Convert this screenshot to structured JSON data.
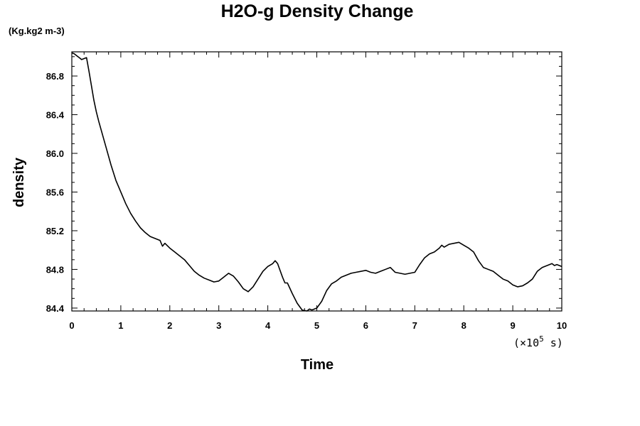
{
  "chart_data": {
    "type": "line",
    "title": "H2O-g Density Change",
    "y_unit_label": "(Kg.kg2 m-3)",
    "xlabel": "Time",
    "ylabel": "density",
    "x_scale_label": "(×10",
    "x_scale_exp": "5",
    "x_scale_unit": " s)",
    "xlim": [
      0,
      10
    ],
    "ylim": [
      84.37,
      87.05
    ],
    "x_ticks": [
      "0",
      "1",
      "2",
      "3",
      "4",
      "5",
      "6",
      "7",
      "8",
      "9",
      "10"
    ],
    "y_ticks": [
      "84.4",
      "84.8",
      "85.2",
      "85.6",
      "86.0",
      "86.4",
      "86.8"
    ],
    "y_tick_values": [
      84.4,
      84.8,
      85.2,
      85.6,
      86.0,
      86.4,
      86.8
    ],
    "grid": false,
    "line_color": "#000000",
    "series": [
      {
        "x": [
          0,
          0.05,
          0.1,
          0.15,
          0.2,
          0.25,
          0.3,
          0.35,
          0.4,
          0.45,
          0.5,
          0.55,
          0.6,
          0.7,
          0.8,
          0.9,
          1.0,
          1.1,
          1.2,
          1.3,
          1.4,
          1.5,
          1.6,
          1.7,
          1.8,
          1.85,
          1.9,
          2.0,
          2.1,
          2.2,
          2.3,
          2.4,
          2.5,
          2.6,
          2.7,
          2.8,
          2.9,
          3.0,
          3.1,
          3.15,
          3.2,
          3.3,
          3.4,
          3.5,
          3.6,
          3.7,
          3.8,
          3.9,
          4.0,
          4.1,
          4.15,
          4.2,
          4.3,
          4.35,
          4.4,
          4.5,
          4.6,
          4.7,
          4.8,
          4.85,
          4.9,
          5.0,
          5.1,
          5.2,
          5.3,
          5.4,
          5.5,
          5.6,
          5.7,
          5.8,
          5.9,
          6.0,
          6.1,
          6.2,
          6.3,
          6.4,
          6.5,
          6.6,
          6.7,
          6.8,
          6.9,
          7.0,
          7.1,
          7.2,
          7.3,
          7.4,
          7.5,
          7.55,
          7.6,
          7.7,
          7.8,
          7.9,
          8.0,
          8.1,
          8.2,
          8.3,
          8.4,
          8.5,
          8.6,
          8.7,
          8.8,
          8.9,
          9.0,
          9.1,
          9.2,
          9.3,
          9.4,
          9.5,
          9.6,
          9.7,
          9.8,
          9.85,
          9.9,
          10.0
        ],
        "y": [
          87.04,
          87.03,
          87.01,
          86.99,
          86.97,
          86.98,
          86.99,
          86.85,
          86.7,
          86.55,
          86.43,
          86.33,
          86.24,
          86.06,
          85.88,
          85.72,
          85.6,
          85.48,
          85.38,
          85.3,
          85.23,
          85.18,
          85.14,
          85.12,
          85.1,
          85.04,
          85.07,
          85.02,
          84.98,
          84.94,
          84.9,
          84.84,
          84.78,
          84.74,
          84.71,
          84.69,
          84.67,
          84.68,
          84.72,
          84.74,
          84.76,
          84.73,
          84.67,
          84.6,
          84.57,
          84.62,
          84.7,
          84.78,
          84.83,
          84.86,
          84.89,
          84.86,
          84.72,
          84.66,
          84.66,
          84.55,
          84.45,
          84.38,
          84.37,
          84.39,
          84.38,
          84.4,
          84.47,
          84.58,
          84.65,
          84.68,
          84.72,
          84.74,
          84.76,
          84.77,
          84.78,
          84.79,
          84.77,
          84.76,
          84.78,
          84.8,
          84.82,
          84.77,
          84.76,
          84.75,
          84.76,
          84.77,
          84.85,
          84.92,
          84.96,
          84.98,
          85.02,
          85.05,
          85.03,
          85.06,
          85.07,
          85.08,
          85.05,
          85.02,
          84.98,
          84.89,
          84.82,
          84.8,
          84.78,
          84.74,
          84.7,
          84.68,
          84.64,
          84.62,
          84.63,
          84.66,
          84.7,
          84.78,
          84.82,
          84.84,
          84.86,
          84.84,
          84.85,
          84.83
        ]
      }
    ]
  }
}
